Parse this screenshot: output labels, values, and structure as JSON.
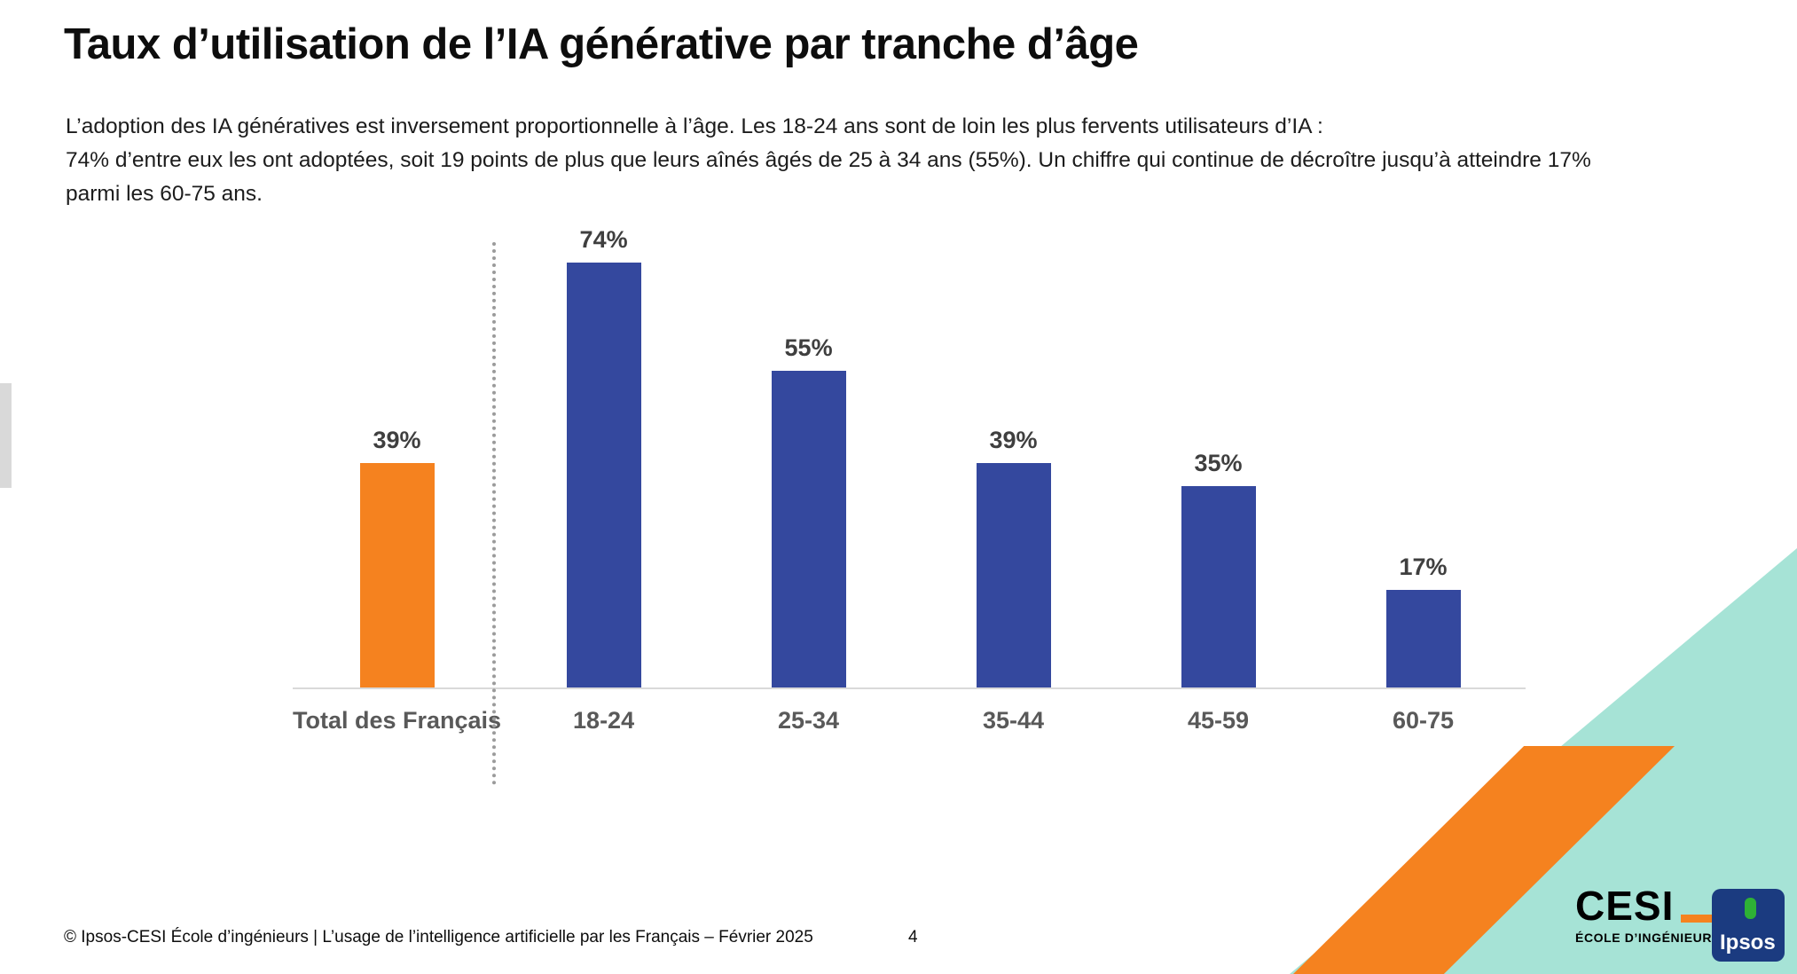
{
  "slide": {
    "title": "Taux d’utilisation de l’IA générative par tranche d’âge",
    "subtitle_lines": [
      "L’adoption des IA génératives est inversement proportionnelle à l’âge. Les 18-24 ans sont de loin les plus fervents utilisateurs d’IA :",
      "74% d’entre eux les ont adoptées, soit 19 points de plus que leurs aînés âgés de 25 à 34 ans (55%). Un chiffre qui continue de décroître jusqu’à atteindre 17%",
      "parmi les 60-75 ans."
    ],
    "footer": "© Ipsos-CESI École d’ingénieurs | L’usage de l’intelligence artificielle par les Français – Février 2025",
    "page_number": "4"
  },
  "chart_data": {
    "type": "bar",
    "title": "Taux d’utilisation de l’IA générative par tranche d’âge",
    "categories": [
      "Total des Français",
      "18-24",
      "25-34",
      "35-44",
      "45-59",
      "60-75"
    ],
    "values": [
      39,
      74,
      55,
      39,
      35,
      17
    ],
    "value_labels": [
      "39%",
      "74%",
      "55%",
      "39%",
      "35%",
      "17%"
    ],
    "bar_colors": [
      "#F5821F",
      "#34489E",
      "#34489E",
      "#34489E",
      "#34489E",
      "#34489E"
    ],
    "xlabel": "",
    "ylabel": "",
    "ylim": [
      0,
      80
    ],
    "grid": false,
    "legend": false,
    "separator_after_index": 0,
    "notes": "dotted vertical line separates the total bar from the age-group bars"
  },
  "logos": {
    "cesi": {
      "name": "CESI",
      "tagline": "ÉCOLE D’INGÉNIEURS",
      "underscore_color": "#F5821F"
    },
    "ipsos": {
      "label": "Ipsos",
      "bg_color": "#1B3B80",
      "accent_color": "#2EB135"
    }
  },
  "colors": {
    "accent_orange": "#F5821F",
    "bar_blue": "#34489E",
    "teal_decoration": "#A6E3D6",
    "axis_gray": "#D9D9D9",
    "label_gray": "#595959"
  }
}
